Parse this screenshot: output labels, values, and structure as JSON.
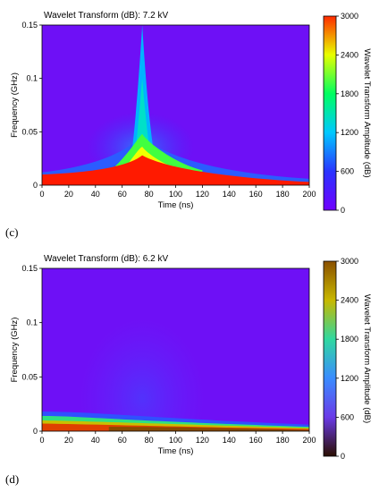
{
  "chart_data": [
    {
      "type": "heatmap",
      "panel_label": "(c)",
      "title": "Wavelet Transform (dB):  7.2 kV",
      "xlabel": "Time (ns)",
      "ylabel": "Frequency (GHz)",
      "xlim": [
        0,
        200
      ],
      "ylim": [
        0,
        0.15
      ],
      "x_ticks": [
        "0",
        "20",
        "40",
        "60",
        "80",
        "100",
        "120",
        "140",
        "160",
        "180",
        "200"
      ],
      "y_ticks": [
        "0",
        "0.05",
        "0.1",
        "0.15"
      ],
      "colorbar": {
        "label": "Wavelet Transform Amplitude (dB)",
        "range": [
          0,
          3000
        ],
        "ticks": [
          "0",
          "600",
          "1200",
          "1800",
          "2400",
          "3000"
        ],
        "colors": [
          "#7000ff",
          "#2a34ff",
          "#00c8ff",
          "#00ff60",
          "#e8ff00",
          "#ff2a00"
        ]
      },
      "features": {
        "peak_time_ns": 75,
        "background_level_db": 200,
        "low_frequency_band_db": 3000
      }
    },
    {
      "type": "heatmap",
      "panel_label": "(d)",
      "title": "Wavelet Transform (dB):  6.2 kV",
      "xlabel": "Time (ns)",
      "ylabel": "Frequency (GHz)",
      "xlim": [
        0,
        200
      ],
      "ylim": [
        0,
        0.15
      ],
      "x_ticks": [
        "0",
        "20",
        "40",
        "60",
        "80",
        "100",
        "120",
        "140",
        "160",
        "180",
        "200"
      ],
      "y_ticks": [
        "0",
        "0.05",
        "0.1",
        "0.15"
      ],
      "colorbar": {
        "label": "Wavelet Transform Amplitude (dB)",
        "range": [
          0,
          3000
        ],
        "ticks": [
          "0",
          "600",
          "1200",
          "1800",
          "2400",
          "3000"
        ],
        "colors": [
          "#2a0f00",
          "#6a3ae8",
          "#3a8cff",
          "#30d8a0",
          "#c8b800",
          "#8a5000"
        ]
      },
      "features": {
        "peak_time_ns": 75,
        "background_level_db": 200,
        "low_frequency_band_db": 2000
      }
    }
  ]
}
